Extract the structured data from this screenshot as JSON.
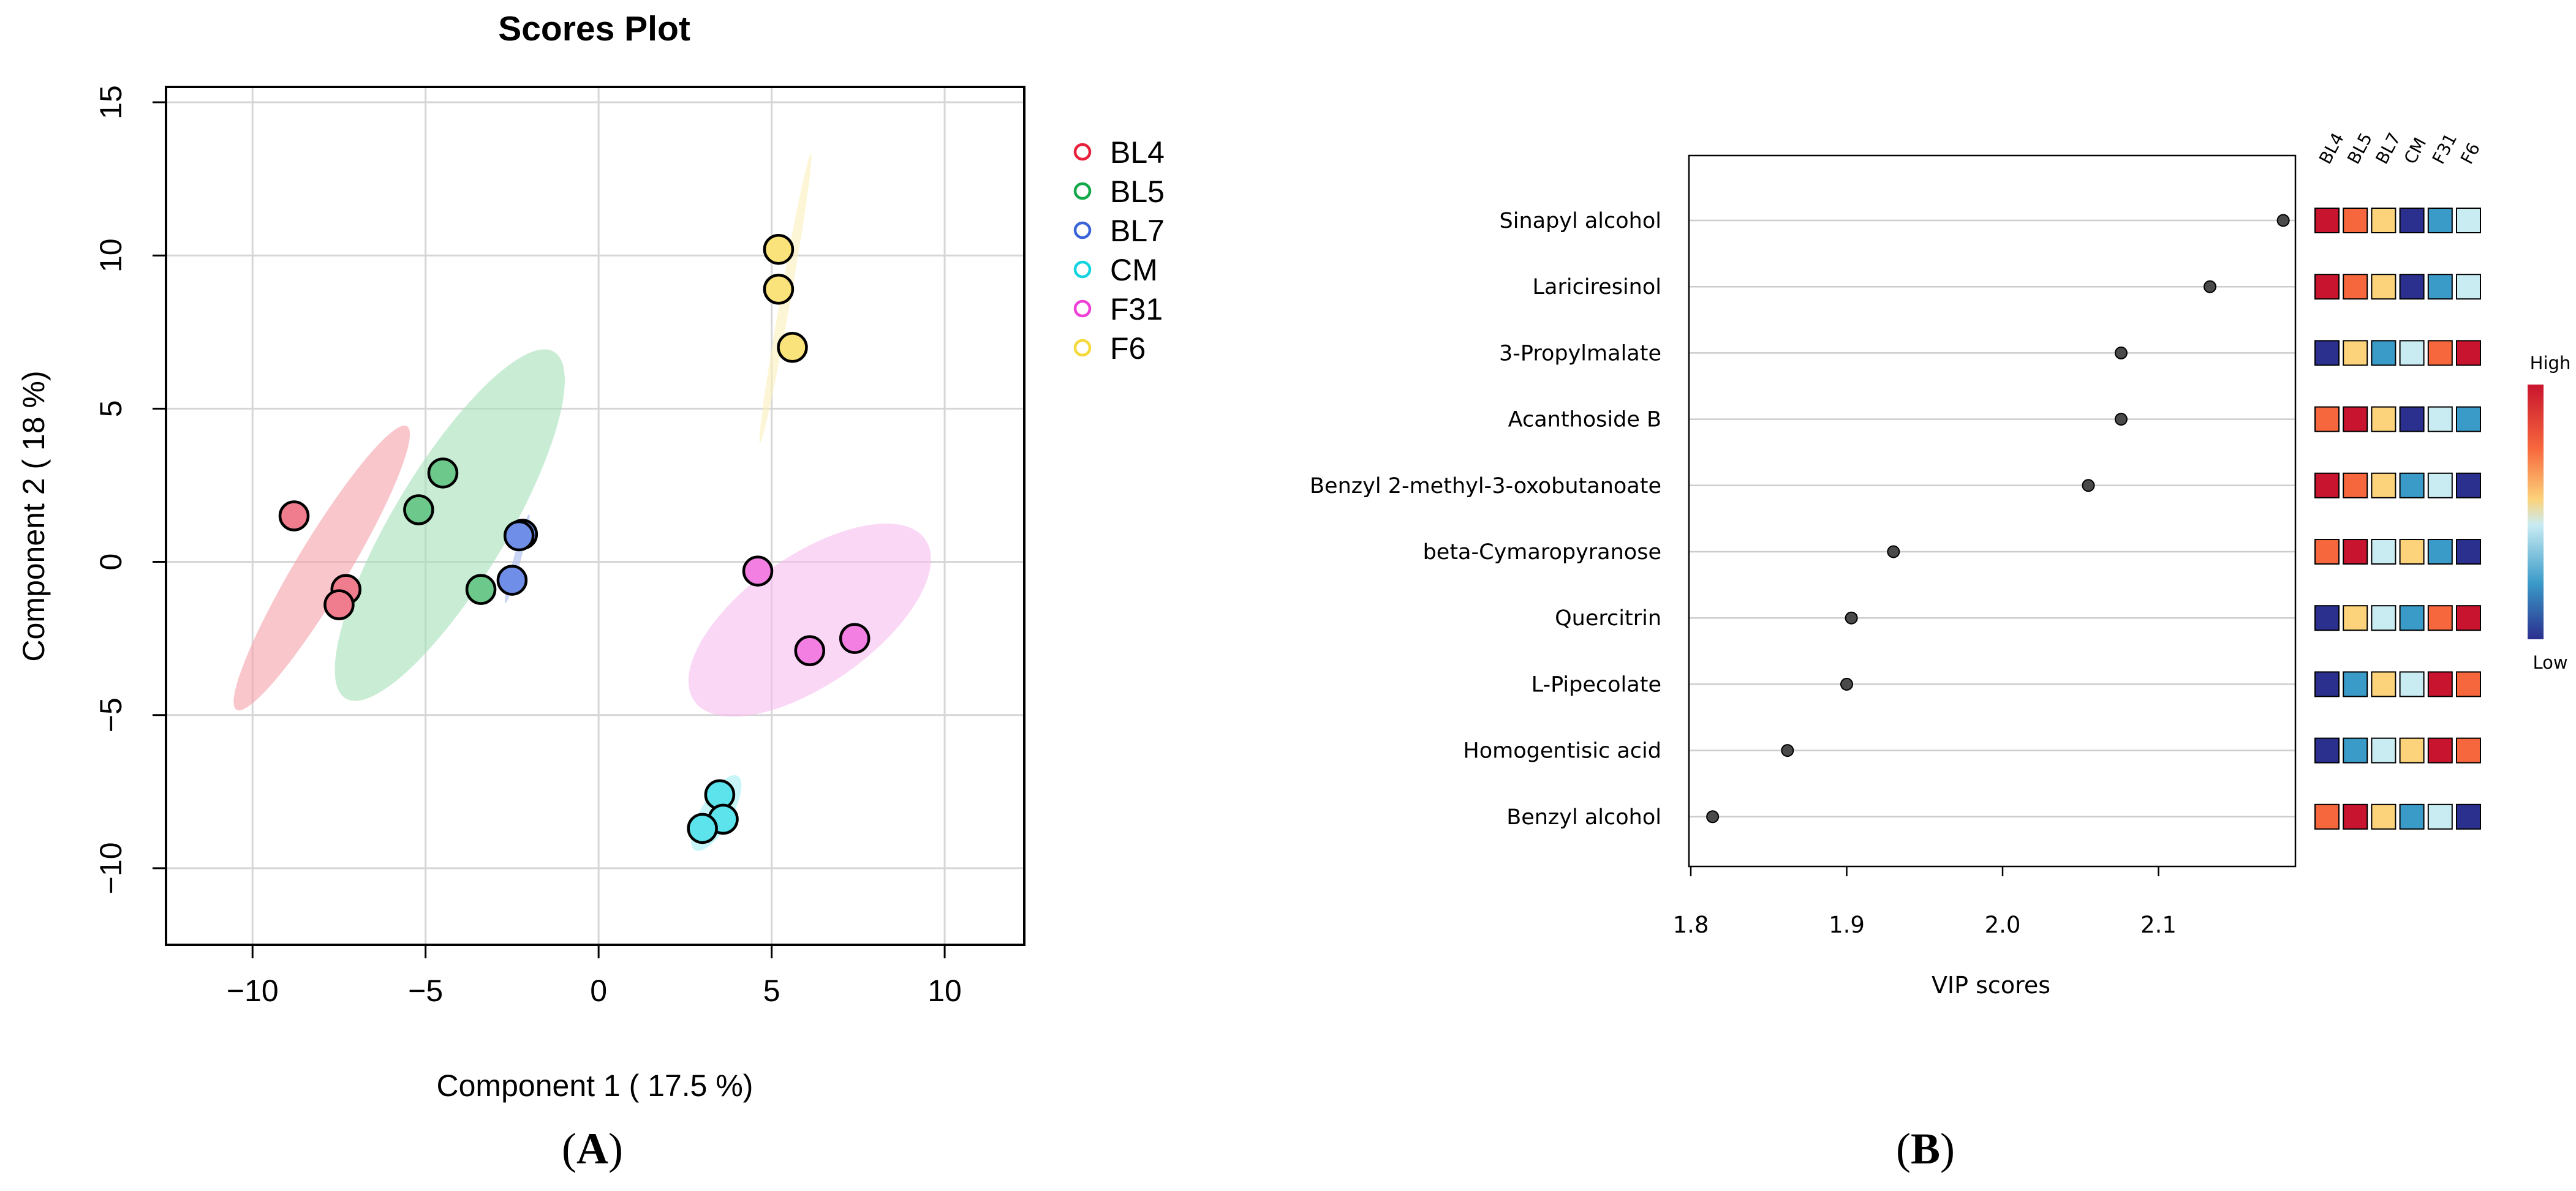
{
  "chart_data": [
    {
      "type": "scatter",
      "title": "Scores Plot",
      "xlabel": "Component 1 ( 17.5 %)",
      "ylabel": "Component 2 ( 18 %)",
      "xlim": [
        -12.5,
        12.3
      ],
      "ylim": [
        -12.5,
        15.5
      ],
      "xticks": [
        -10,
        -5,
        0,
        5,
        10
      ],
      "yticks": [
        -10,
        -5,
        0,
        5,
        10,
        15
      ],
      "xtick_labels": [
        "−10",
        "−5",
        "0",
        "5",
        "10"
      ],
      "ytick_labels": [
        "−10",
        "−5",
        "0",
        "5",
        "10",
        "15"
      ],
      "grid": true,
      "legend_position": "right",
      "series": [
        {
          "name": "BL4",
          "color": "#e8203b",
          "fill": "#f07d8d",
          "ellipse_fill": "#f5a0aa",
          "points": [
            [
              -8.8,
              1.5
            ],
            [
              -7.3,
              -0.9
            ],
            [
              -7.5,
              -1.4
            ]
          ],
          "ellipse": {
            "center": [
              -8.0,
              -0.2
            ],
            "rx": 5.4,
            "ry": 0.85,
            "angle_deg": -59
          }
        },
        {
          "name": "BL5",
          "color": "#12a84a",
          "fill": "#6cc98b",
          "ellipse_fill": "#a3dfb7",
          "points": [
            [
              -4.5,
              2.9
            ],
            [
              -5.2,
              1.7
            ],
            [
              -3.4,
              -0.9
            ]
          ],
          "ellipse": {
            "center": [
              -4.3,
              1.2
            ],
            "rx": 6.6,
            "ry": 1.85,
            "angle_deg": -59
          }
        },
        {
          "name": "BL7",
          "color": "#3a64d8",
          "fill": "#6f8ee8",
          "ellipse_fill": "#a9b9ee",
          "points": [
            [
              -2.2,
              0.9
            ],
            [
              -2.3,
              0.85
            ],
            [
              -2.5,
              -0.6
            ]
          ],
          "ellipse": {
            "center": [
              -2.35,
              0.1
            ],
            "rx": 1.5,
            "ry": 0.12,
            "angle_deg": -75
          }
        },
        {
          "name": "CM",
          "color": "#12d3e0",
          "fill": "#5ce3ec",
          "ellipse_fill": "#a3eef3",
          "points": [
            [
              3.5,
              -7.6
            ],
            [
              3.6,
              -8.4
            ],
            [
              3.0,
              -8.7
            ]
          ],
          "ellipse": {
            "center": [
              3.4,
              -8.2
            ],
            "rx": 1.4,
            "ry": 0.5,
            "angle_deg": -60
          }
        },
        {
          "name": "F31",
          "color": "#ee3fd6",
          "fill": "#f37fe3",
          "ellipse_fill": "#f9bdf0",
          "points": [
            [
              4.6,
              -0.3
            ],
            [
              6.1,
              -2.9
            ],
            [
              7.4,
              -2.5
            ]
          ],
          "ellipse": {
            "center": [
              6.1,
              -1.9
            ],
            "rx": 4.6,
            "ry": 2.1,
            "angle_deg": -35
          }
        },
        {
          "name": "F6",
          "color": "#f5d93a",
          "fill": "#fae37a",
          "ellipse_fill": "#fbf0ba",
          "points": [
            [
              5.2,
              10.2
            ],
            [
              5.2,
              8.9
            ],
            [
              5.6,
              7.0
            ]
          ],
          "ellipse": {
            "center": [
              5.4,
              8.6
            ],
            "rx": 4.8,
            "ry": 0.17,
            "angle_deg": -80
          }
        }
      ]
    },
    {
      "type": "dot",
      "xlabel": "VIP scores",
      "xlim": [
        1.8,
        2.2
      ],
      "xticks": [
        1.8,
        1.9,
        2.0,
        2.1
      ],
      "xtick_labels": [
        "1.8",
        "1.9",
        "2.0",
        "2.1"
      ],
      "features": [
        "Sinapyl alcohol",
        "Lariciresinol",
        "3-Propylmalate",
        "Acanthoside B",
        "Benzyl 2-methyl-3-oxobutanoate",
        "beta-Cymaropyranose",
        "Quercitrin",
        "L-Pipecolate",
        "Homogentisic acid",
        "Benzyl alcohol"
      ],
      "values": [
        2.18,
        2.133,
        2.076,
        2.076,
        2.055,
        1.93,
        1.903,
        1.9,
        1.862,
        1.814
      ],
      "groups": [
        "BL4",
        "BL5",
        "BL7",
        "CM",
        "F31",
        "F6"
      ],
      "heatmap_levels": [
        [
          6,
          5,
          4,
          0,
          1,
          2
        ],
        [
          6,
          5,
          4,
          0,
          1,
          2
        ],
        [
          0,
          4,
          1,
          2,
          5,
          6
        ],
        [
          5,
          6,
          4,
          0,
          2,
          1
        ],
        [
          6,
          5,
          4,
          1,
          2,
          0
        ],
        [
          5,
          6,
          2,
          4,
          1,
          0
        ],
        [
          0,
          4,
          2,
          1,
          5,
          6
        ],
        [
          0,
          1,
          4,
          2,
          6,
          5
        ],
        [
          0,
          1,
          2,
          4,
          6,
          5
        ],
        [
          5,
          6,
          4,
          1,
          2,
          0
        ]
      ],
      "palette": [
        "#2b2f8e",
        "#3a9ac8",
        "#c9ecf3",
        "#c9ecf3",
        "#fcd27a",
        "#f7673d",
        "#c8142e"
      ],
      "color_key": {
        "high_label": "High",
        "low_label": "Low"
      }
    }
  ],
  "panel_labels": {
    "a": "A",
    "b": "B"
  }
}
